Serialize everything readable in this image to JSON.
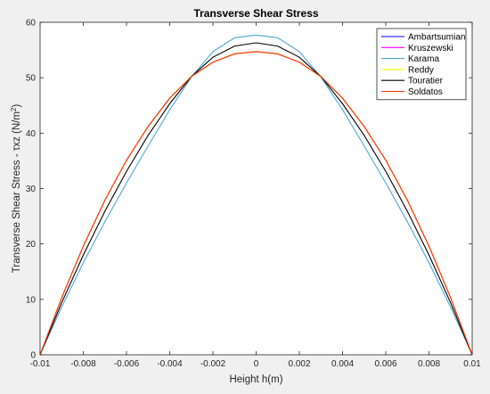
{
  "chart_data": {
    "type": "line",
    "title": "Transverse Shear Stress",
    "xlabel": "Height h(m)",
    "ylabel_main": "Transverse Shear Stress - τxz (N/m",
    "ylabel_sup": "2",
    "ylabel_tail": ")",
    "xlim": [
      -0.01,
      0.01
    ],
    "ylim": [
      0,
      60
    ],
    "xticks": [
      -0.01,
      -0.008,
      -0.006,
      -0.004,
      -0.002,
      0,
      0.002,
      0.004,
      0.006,
      0.008,
      0.01
    ],
    "xtick_labels": [
      "-0.01",
      "-0.008",
      "-0.006",
      "-0.004",
      "-0.002",
      "0",
      "0.002",
      "0.004",
      "0.006",
      "0.008",
      "0.01"
    ],
    "yticks": [
      0,
      10,
      20,
      30,
      40,
      50,
      60
    ],
    "ytick_labels": [
      "0",
      "10",
      "20",
      "30",
      "40",
      "50",
      "60"
    ],
    "legend_position": "top-right",
    "x": [
      -0.01,
      -0.009,
      -0.008,
      -0.007,
      -0.006,
      -0.005,
      -0.004,
      -0.003,
      -0.002,
      -0.001,
      0,
      0.001,
      0.002,
      0.003,
      0.004,
      0.005,
      0.006,
      0.007,
      0.008,
      0.009,
      0.01
    ],
    "series": [
      {
        "name": "Ambartsumian",
        "color": "#0000ff",
        "values": [
          0,
          10.3,
          19.6,
          27.9,
          35.1,
          41.2,
          46.3,
          50.2,
          52.8,
          54.3,
          54.7,
          54.3,
          52.8,
          50.2,
          46.3,
          41.2,
          35.1,
          27.9,
          19.6,
          10.3,
          0
        ]
      },
      {
        "name": "Kruszewski",
        "color": "#ff00ff",
        "values": [
          0,
          10.3,
          19.6,
          27.9,
          35.1,
          41.2,
          46.3,
          50.2,
          52.8,
          54.3,
          54.7,
          54.3,
          52.8,
          50.2,
          46.3,
          41.2,
          35.1,
          27.9,
          19.6,
          10.3,
          0
        ]
      },
      {
        "name": "Karama",
        "color": "#4da6d6",
        "values": [
          0,
          8.6,
          16.6,
          24.0,
          31.0,
          37.7,
          44.2,
          50.1,
          54.7,
          57.2,
          57.7,
          57.2,
          54.7,
          50.1,
          44.2,
          37.7,
          31.0,
          24.0,
          16.6,
          8.6,
          0
        ]
      },
      {
        "name": "Reddy",
        "color": "#ffff00",
        "values": [
          0,
          10.3,
          19.6,
          27.9,
          35.1,
          41.2,
          46.3,
          50.2,
          52.8,
          54.3,
          54.7,
          54.3,
          52.8,
          50.2,
          46.3,
          41.2,
          35.1,
          27.9,
          19.6,
          10.3,
          0
        ]
      },
      {
        "name": "Touratier",
        "color": "#000000",
        "values": [
          0,
          9.4,
          18.0,
          25.9,
          33.1,
          39.6,
          45.3,
          50.2,
          53.7,
          55.7,
          56.3,
          55.7,
          53.7,
          50.2,
          45.3,
          39.6,
          33.1,
          25.9,
          18.0,
          9.4,
          0
        ]
      },
      {
        "name": "Soldatos",
        "color": "#ff3b00",
        "values": [
          0,
          10.3,
          19.6,
          27.9,
          35.1,
          41.2,
          46.3,
          50.2,
          52.8,
          54.3,
          54.7,
          54.3,
          52.8,
          50.2,
          46.3,
          41.2,
          35.1,
          27.9,
          19.6,
          10.3,
          0
        ]
      }
    ],
    "colors": {
      "background": "#f0f0f0",
      "axes_background": "#ffffff",
      "axis": "#262626"
    }
  }
}
